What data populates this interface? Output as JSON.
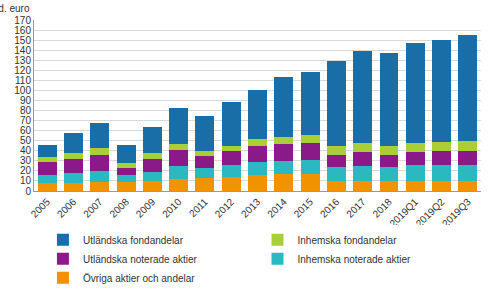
{
  "chart_data": {
    "type": "bar",
    "stacked": true,
    "grid": true,
    "legend": "bottom",
    "y_label": "md. euro",
    "categories": [
      "2005",
      "2006",
      "2007",
      "2008",
      "2009",
      "2010",
      "2011",
      "2012",
      "2013",
      "2014",
      "2015",
      "2016",
      "2017",
      "2018",
      "2019Q1",
      "2019Q2",
      "2019Q3"
    ],
    "series": [
      {
        "name": "Övriga aktier och andelar",
        "color": "#f39200",
        "values": [
          8,
          8,
          9,
          9,
          10,
          12,
          13,
          14,
          16,
          17,
          17,
          10,
          10,
          10,
          10,
          10,
          10
        ]
      },
      {
        "name": "Inhemska noterade aktier",
        "color": "#2bb8c0",
        "values": [
          8,
          10,
          11,
          7,
          9,
          13,
          10,
          12,
          13,
          13,
          14,
          14,
          15,
          14,
          16,
          16,
          16
        ]
      },
      {
        "name": "Utländska noterade aktier",
        "color": "#8b1a89",
        "values": [
          13,
          14,
          16,
          7,
          13,
          16,
          12,
          14,
          16,
          17,
          17,
          12,
          14,
          12,
          13,
          14,
          14
        ]
      },
      {
        "name": "Inhemska fondandelar",
        "color": "#a9cf38",
        "values": [
          5,
          6,
          7,
          5,
          6,
          6,
          5,
          5,
          7,
          7,
          8,
          9,
          9,
          9,
          9,
          9,
          10
        ]
      },
      {
        "name": "Utländska fondandelar",
        "color": "#1a6ea8",
        "values": [
          12,
          20,
          25,
          18,
          26,
          36,
          35,
          43,
          48,
          59,
          62,
          84,
          91,
          92,
          99,
          101,
          105
        ]
      }
    ],
    "ylim": [
      0,
      170
    ],
    "yticks": [
      0,
      10,
      20,
      30,
      40,
      50,
      60,
      70,
      80,
      90,
      100,
      110,
      120,
      130,
      140,
      150,
      160,
      170
    ]
  }
}
